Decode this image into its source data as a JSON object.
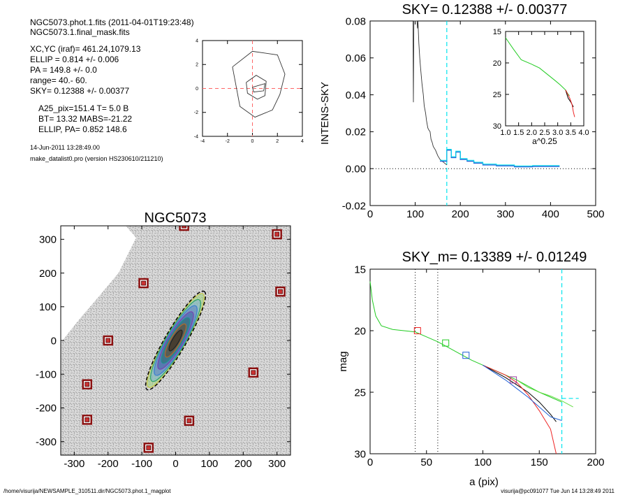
{
  "info": {
    "line1": "NGC5073.phot.1.fits  (2011-04-01T19:23:48)",
    "line2": "NGC5073.1.final_mask.fits",
    "line3": "XC,YC (iraf)=   461.24,1079.13",
    "line4": "ELLIP = 0.814 +/- 0.006",
    "line5": "PA    = 149.8 +/-   0.0",
    "line6": "range=   40.-   60.",
    "line7": "SKY= 0.12388 +/- 0.00377",
    "line8": "A25_pix=151.4   T= 5.0  B",
    "line9": "BT=  13.32   MABS=-21.22",
    "line10": "ELLIP, PA= 0.852   148.6",
    "date": "14-Jun-2011 13:28:49.00",
    "program": "make_datalist0.pro (version HS230610/211210)"
  },
  "footer": {
    "left": "/home/visurija/NEWSAMPLE_310511.dir/NGC5073.phot.1_magplot",
    "right": "visurija@pc091077  Tue Jun 14 13:28:49 2011"
  },
  "colors": {
    "black": "#000000",
    "red_dashed": "#ff6666",
    "cyan": "#00e5ee",
    "green": "#22cc22",
    "red": "#ee2222",
    "blue": "#1e5fd6",
    "dark_red_box": "#8b1010"
  },
  "chart_data": [
    {
      "type": "line",
      "id": "center-contours",
      "title": "",
      "xlabel": "",
      "ylabel": "",
      "xlim": [
        -4,
        4
      ],
      "ylim": [
        -4,
        4
      ],
      "xticks": [
        "-4",
        "-2",
        "0",
        "2",
        "4"
      ],
      "yticks": [
        "-4",
        "-2",
        "0",
        "2",
        "4"
      ],
      "series": [
        {
          "x": [
            -1.6,
            0.0,
            2.0,
            2.6,
            2.2,
            1.6,
            0.2,
            -1.0,
            -1.6
          ],
          "y": [
            1.8,
            3.1,
            2.8,
            1.2,
            -0.5,
            -1.8,
            -2.4,
            -1.5,
            1.8
          ]
        },
        {
          "x": [
            -0.5,
            0.3,
            1.1,
            1.0,
            0.4,
            -0.4,
            -0.5
          ],
          "y": [
            0.5,
            1.1,
            0.6,
            -0.6,
            -0.9,
            -0.4,
            0.5
          ]
        },
        {
          "x": [
            0.0,
            1.0,
            0.9,
            0.1,
            0.0
          ],
          "y": [
            0.1,
            0.4,
            -0.2,
            -0.3,
            0.1
          ]
        }
      ]
    },
    {
      "type": "line",
      "id": "sky-profile",
      "title": "SKY= 0.12388 +/- 0.00377",
      "xlabel": "",
      "ylabel": "INTENS-SKY",
      "xlim": [
        0,
        500
      ],
      "ylim": [
        -0.02,
        0.08
      ],
      "xticks": [
        "0",
        "100",
        "200",
        "300",
        "400",
        "500"
      ],
      "yticks": [
        "-0.02",
        "0.00",
        "0.02",
        "0.04",
        "0.06",
        "0.08"
      ],
      "sky_marker_x": 170,
      "series": [
        {
          "name": "profile",
          "x": [
            95,
            96,
            97,
            98,
            100,
            102,
            104,
            105,
            106,
            108,
            110,
            112,
            115,
            118,
            120,
            123,
            125,
            128,
            130,
            133,
            135,
            138,
            140,
            145,
            150,
            155,
            160,
            165,
            170
          ],
          "y": [
            0.08,
            0.036,
            0.08,
            0.08,
            0.08,
            0.08,
            0.08,
            0.076,
            0.08,
            0.068,
            0.06,
            0.054,
            0.046,
            0.04,
            0.034,
            0.03,
            0.026,
            0.022,
            0.021,
            0.02,
            0.016,
            0.014,
            0.012,
            0.01,
            0.007,
            0.005,
            0.004,
            0.003,
            0.002
          ]
        },
        {
          "name": "binned",
          "x": [
            155,
            170,
            170,
            180,
            180,
            190,
            190,
            200,
            200,
            215,
            215,
            230,
            230,
            250,
            250,
            280,
            280,
            320,
            320,
            360,
            360,
            400,
            400,
            420
          ],
          "y": [
            0.004,
            0.004,
            0.01,
            0.01,
            0.006,
            0.006,
            0.009,
            0.009,
            0.005,
            0.005,
            0.004,
            0.004,
            0.003,
            0.003,
            0.002,
            0.002,
            0.0015,
            0.0015,
            0.001,
            0.001,
            0.0012,
            0.0012,
            0.0012,
            0.0012
          ]
        }
      ]
    },
    {
      "type": "line",
      "id": "sky-inset",
      "title": "",
      "xlabel": "a^0.25",
      "ylabel": "",
      "xlim": [
        1.0,
        4.0
      ],
      "ylim": [
        30,
        15
      ],
      "xticks": [
        "1.0",
        "1.5",
        "2.0",
        "2.5",
        "3.0",
        "3.5",
        "4.0"
      ],
      "yticks": [
        "15",
        "20",
        "25",
        "30"
      ],
      "series": [
        {
          "x": [
            1.0,
            1.3,
            1.6,
            2.0,
            2.3,
            2.6,
            2.9,
            3.1,
            3.3,
            3.4,
            3.45
          ],
          "y": [
            16.0,
            17.8,
            19.5,
            20.2,
            20.8,
            21.8,
            22.8,
            23.5,
            24.3,
            25.0,
            25.2
          ]
        },
        {
          "x": [
            3.3,
            3.4,
            3.5,
            3.6
          ],
          "y": [
            24.3,
            25.6,
            26.2,
            27.0
          ]
        },
        {
          "x": [
            3.3,
            3.45,
            3.55,
            3.6,
            3.65
          ],
          "y": [
            24.3,
            25.5,
            26.6,
            27.8,
            28.6
          ]
        }
      ]
    },
    {
      "type": "scatter",
      "id": "galaxy-map",
      "title": "NGC5073",
      "xlabel": "",
      "ylabel": "",
      "xlim": [
        -340,
        340
      ],
      "ylim": [
        -340,
        340
      ],
      "xticks": [
        "-300",
        "-200",
        "-100",
        "0",
        "100",
        "200",
        "300"
      ],
      "yticks": [
        "-300",
        "-200",
        "-100",
        "0",
        "100",
        "200",
        "300"
      ],
      "masked_stars": [
        {
          "x": 300,
          "y": 315
        },
        {
          "x": 310,
          "y": 145
        },
        {
          "x": -95,
          "y": 170
        },
        {
          "x": -200,
          "y": 0
        },
        {
          "x": -262,
          "y": -130
        },
        {
          "x": -262,
          "y": -235
        },
        {
          "x": 40,
          "y": -238
        },
        {
          "x": 230,
          "y": -95
        },
        {
          "x": -80,
          "y": -318
        },
        {
          "x": 25,
          "y": 340
        }
      ],
      "galaxy": {
        "pa_deg": 149.8,
        "ellip": 0.814,
        "sma": 160
      }
    },
    {
      "type": "line",
      "id": "mag-profile",
      "title": "SKY_m=  0.13389 +/- 0.01249",
      "xlabel": "a (pix)",
      "ylabel": "mag",
      "xlim": [
        0,
        200
      ],
      "ylim": [
        30,
        15
      ],
      "xticks": [
        "0",
        "50",
        "100",
        "150",
        "200"
      ],
      "yticks": [
        "15",
        "20",
        "25",
        "30"
      ],
      "range_lines": [
        40,
        60
      ],
      "sky_marker_x": 170,
      "sky_level": 25.5,
      "series": [
        {
          "name": "green",
          "x": [
            0,
            2,
            5,
            10,
            20,
            30,
            40,
            50,
            60,
            70,
            80,
            90,
            100,
            110,
            120,
            130,
            140,
            150,
            160,
            170
          ],
          "y": [
            16.0,
            17.5,
            18.8,
            19.6,
            19.9,
            20.0,
            20.1,
            20.5,
            20.9,
            21.4,
            21.9,
            22.4,
            22.8,
            23.2,
            23.6,
            24.0,
            24.5,
            25.0,
            25.4,
            25.8
          ]
        },
        {
          "name": "black",
          "x": [
            100,
            110,
            120,
            130,
            140,
            150,
            160,
            165
          ],
          "y": [
            22.8,
            23.3,
            23.8,
            24.4,
            25.0,
            25.8,
            26.8,
            27.4
          ]
        },
        {
          "name": "red",
          "x": [
            100,
            110,
            120,
            130,
            140,
            150,
            160,
            165
          ],
          "y": [
            22.8,
            23.2,
            23.6,
            24.2,
            25.2,
            26.5,
            28.0,
            30.0
          ]
        },
        {
          "name": "blue",
          "x": [
            100,
            110,
            120,
            130,
            140,
            150,
            160,
            170
          ],
          "y": [
            22.8,
            23.4,
            24.0,
            24.7,
            25.4,
            26.2,
            27.0,
            27.3
          ]
        },
        {
          "name": "green2",
          "x": [
            130,
            140,
            150,
            160,
            170,
            180
          ],
          "y": [
            24.0,
            24.6,
            25.0,
            25.3,
            25.7,
            26.2
          ]
        }
      ],
      "markers": [
        {
          "x": 42,
          "y": 20.0,
          "color": "red"
        },
        {
          "x": 67,
          "y": 21.0,
          "color": "green"
        },
        {
          "x": 85,
          "y": 22.0,
          "color": "blue"
        },
        {
          "x": 127,
          "y": 24.0,
          "color": "purple"
        }
      ]
    }
  ]
}
